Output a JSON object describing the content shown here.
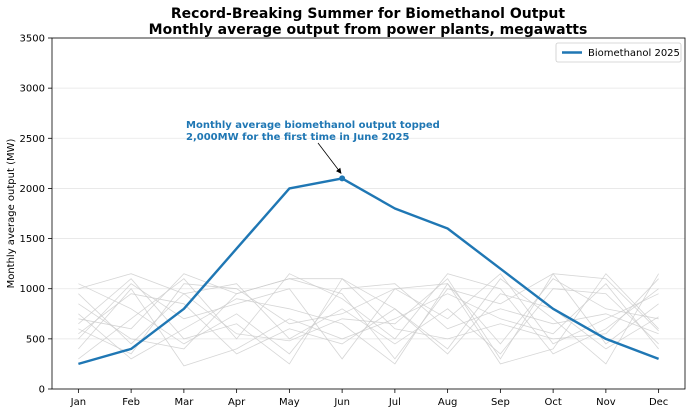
{
  "chart_data": {
    "type": "line",
    "title": "Record-Breaking Summer for Biomethanol Output",
    "subtitle": "Monthly average output from power plants, megawatts",
    "xlabel": "",
    "ylabel": "Monthly average output (MW)",
    "categories": [
      "Jan",
      "Feb",
      "Mar",
      "Apr",
      "May",
      "Jun",
      "Jul",
      "Aug",
      "Sep",
      "Oct",
      "Nov",
      "Dec"
    ],
    "ylim": [
      0,
      3500
    ],
    "yticks": [
      0,
      500,
      1000,
      1500,
      2000,
      2500,
      3000,
      3500
    ],
    "grid": true,
    "legend_position": "top-right",
    "series": [
      {
        "name": "Biomethanol 2025",
        "color": "#1f77b4",
        "highlight": true,
        "values": [
          250,
          400,
          800,
          1400,
          2000,
          2100,
          1800,
          1600,
          1200,
          800,
          500,
          300
        ]
      }
    ],
    "background_series": [
      {
        "values": [
          1000,
          1150,
          950,
          550,
          480,
          700,
          650,
          1100,
          300,
          1150,
          1100,
          580
        ]
      },
      {
        "values": [
          700,
          600,
          1150,
          950,
          1100,
          1100,
          800,
          400,
          1100,
          700,
          250,
          1150
        ]
      },
      {
        "values": [
          500,
          1050,
          700,
          850,
          1000,
          300,
          1000,
          1050,
          250,
          400,
          1150,
          600
        ]
      },
      {
        "values": [
          600,
          350,
          1050,
          1000,
          650,
          750,
          1000,
          700,
          1150,
          450,
          700,
          950
        ]
      },
      {
        "values": [
          850,
          500,
          400,
          950,
          1100,
          950,
          300,
          1000,
          850,
          1150,
          450,
          850
        ]
      },
      {
        "values": [
          400,
          1000,
          230,
          400,
          700,
          500,
          700,
          950,
          700,
          550,
          1050,
          400
        ]
      },
      {
        "values": [
          750,
          300,
          600,
          900,
          800,
          650,
          250,
          1050,
          450,
          1100,
          800,
          700
        ]
      },
      {
        "values": [
          300,
          700,
          1100,
          500,
          1150,
          900,
          500,
          1150,
          1000,
          350,
          600,
          1000
        ]
      },
      {
        "values": [
          1050,
          800,
          450,
          750,
          350,
          1000,
          1050,
          600,
          800,
          650,
          750,
          550
        ]
      },
      {
        "values": [
          550,
          950,
          850,
          350,
          600,
          450,
          800,
          350,
          950,
          800,
          400,
          720
        ]
      },
      {
        "values": [
          950,
          450,
          950,
          1050,
          500,
          800,
          450,
          800,
          350,
          1000,
          950,
          450
        ]
      },
      {
        "values": [
          650,
          1100,
          500,
          650,
          250,
          1100,
          600,
          500,
          650,
          500,
          550,
          1100
        ]
      }
    ],
    "background_color": "#cccccc",
    "annotation": {
      "text_lines": [
        "Monthly average biomethanol output topped",
        "2,000MW for the first time in June 2025"
      ],
      "target_category": "Jun",
      "target_value": 2100,
      "color": "#1f77b4"
    }
  }
}
